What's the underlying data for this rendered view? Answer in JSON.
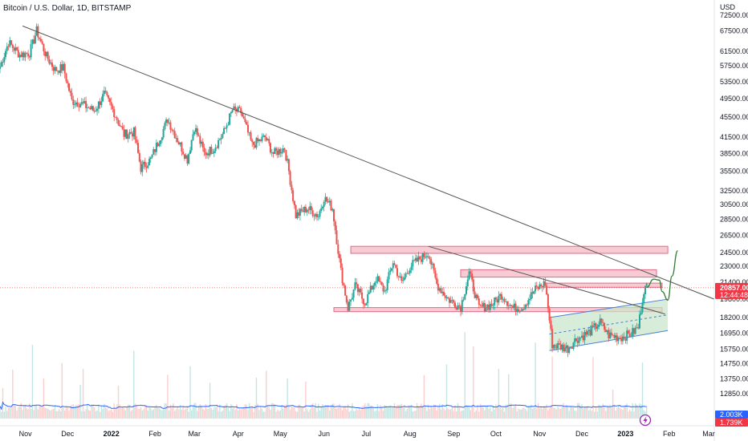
{
  "chart_data": {
    "type": "candlestick",
    "title": "Bitcoin / U.S. Dollar, 1D, BITSTAMP",
    "currency_label": "USD",
    "y_scale": "log",
    "ylim": [
      11900,
      76000
    ],
    "y_ticks": [
      "72500.00",
      "67500.00",
      "61500.00",
      "57500.00",
      "53500.00",
      "49500.00",
      "45500.00",
      "41500.00",
      "38500.00",
      "35500.00",
      "32500.00",
      "30500.00",
      "28500.00",
      "26500.00",
      "24500.00",
      "23000.00",
      "21400.00",
      "19800.00",
      "18200.00",
      "16950.00",
      "15750.00",
      "14750.00",
      "13750.00",
      "12850.00"
    ],
    "x_ticks": [
      "Nov",
      "Dec",
      "2022",
      "Feb",
      "Mar",
      "Apr",
      "May",
      "Jun",
      "Jul",
      "Aug",
      "Sep",
      "Oct",
      "Nov",
      "Dec",
      "2023",
      "Feb",
      "Mar"
    ],
    "x_tick_dates": [
      "2021-11-01",
      "2021-12-01",
      "2022-01-01",
      "2022-02-01",
      "2022-03-01",
      "2022-04-01",
      "2022-05-01",
      "2022-06-01",
      "2022-07-01",
      "2022-08-01",
      "2022-09-01",
      "2022-10-01",
      "2022-11-01",
      "2022-12-01",
      "2023-01-01",
      "2023-02-01",
      "2023-03-01"
    ],
    "x_range": [
      "2021-10-14",
      "2023-03-05"
    ],
    "price_path": [
      [
        "2021-10-14",
        57300
      ],
      [
        "2021-10-20",
        64000
      ],
      [
        "2021-10-28",
        60500
      ],
      [
        "2021-11-04",
        61000
      ],
      [
        "2021-11-09",
        67500
      ],
      [
        "2021-11-16",
        60000
      ],
      [
        "2021-11-22",
        56500
      ],
      [
        "2021-11-28",
        57000
      ],
      [
        "2021-12-04",
        49000
      ],
      [
        "2021-12-10",
        48500
      ],
      [
        "2021-12-20",
        46800
      ],
      [
        "2021-12-27",
        50500
      ],
      [
        "2022-01-03",
        46500
      ],
      [
        "2022-01-10",
        42000
      ],
      [
        "2022-01-17",
        42500
      ],
      [
        "2022-01-22",
        36000
      ],
      [
        "2022-01-29",
        37500
      ],
      [
        "2022-02-07",
        43000
      ],
      [
        "2022-02-10",
        45000
      ],
      [
        "2022-02-19",
        40000
      ],
      [
        "2022-02-24",
        37500
      ],
      [
        "2022-03-01",
        43500
      ],
      [
        "2022-03-08",
        38500
      ],
      [
        "2022-03-15",
        39500
      ],
      [
        "2022-03-22",
        42500
      ],
      [
        "2022-03-28",
        47000
      ],
      [
        "2022-04-03",
        46500
      ],
      [
        "2022-04-11",
        40000
      ],
      [
        "2022-04-20",
        41500
      ],
      [
        "2022-04-26",
        38500
      ],
      [
        "2022-05-04",
        39500
      ],
      [
        "2022-05-07",
        35500
      ],
      [
        "2022-05-12",
        29000
      ],
      [
        "2022-05-20",
        30000
      ],
      [
        "2022-05-28",
        29000
      ],
      [
        "2022-06-01",
        31500
      ],
      [
        "2022-06-07",
        30000
      ],
      [
        "2022-06-13",
        22500
      ],
      [
        "2022-06-18",
        19000
      ],
      [
        "2022-06-23",
        21000
      ],
      [
        "2022-06-30",
        19500
      ],
      [
        "2022-07-08",
        21800
      ],
      [
        "2022-07-14",
        20500
      ],
      [
        "2022-07-20",
        23500
      ],
      [
        "2022-07-26",
        21300
      ],
      [
        "2022-08-01",
        23000
      ],
      [
        "2022-08-14",
        24500
      ],
      [
        "2022-08-20",
        21200
      ],
      [
        "2022-08-28",
        19800
      ],
      [
        "2022-09-06",
        19100
      ],
      [
        "2022-09-12",
        22300
      ],
      [
        "2022-09-19",
        19000
      ],
      [
        "2022-09-28",
        19300
      ],
      [
        "2022-10-05",
        20200
      ],
      [
        "2022-10-13",
        19000
      ],
      [
        "2022-10-20",
        19100
      ],
      [
        "2022-10-29",
        20700
      ],
      [
        "2022-11-05",
        21300
      ],
      [
        "2022-11-09",
        17000
      ],
      [
        "2022-11-10",
        16100
      ],
      [
        "2022-11-21",
        15800
      ],
      [
        "2022-11-27",
        16500
      ],
      [
        "2022-12-06",
        17000
      ],
      [
        "2022-12-14",
        17800
      ],
      [
        "2022-12-20",
        16800
      ],
      [
        "2022-12-28",
        16600
      ],
      [
        "2023-01-05",
        16900
      ],
      [
        "2023-01-10",
        17400
      ],
      [
        "2023-01-14",
        20700
      ],
      [
        "2023-01-16",
        20900
      ]
    ],
    "volume_series": [
      {
        "name": "Volume",
        "color": "#26a69a / #ef5350"
      },
      {
        "name": "Volume MA",
        "color": "#2962ff"
      }
    ],
    "trendlines": [
      {
        "start": [
          "2021-10-30",
          69000
        ],
        "end": [
          "2023-03-05",
          19800
        ],
        "color": "#555555"
      },
      {
        "start": [
          "2022-08-14",
          25200
        ],
        "end": [
          "2023-01-29",
          18500
        ],
        "color": "#555555"
      }
    ],
    "zones": [
      {
        "from": [
          "2022-06-20",
          24400
        ],
        "to": [
          "2023-01-31",
          25200
        ]
      },
      {
        "from": [
          "2022-09-06",
          21900
        ],
        "to": [
          "2023-01-23",
          22650
        ]
      },
      {
        "from": [
          "2022-11-06",
          20900
        ],
        "to": [
          "2023-01-27",
          21300
        ]
      },
      {
        "from": [
          "2022-06-08",
          18700
        ],
        "to": [
          "2023-01-27",
          19050
        ]
      }
    ],
    "channel": {
      "lower_start": [
        "2022-11-08",
        15650
      ],
      "lower_end": [
        "2023-01-31",
        17150
      ],
      "upper_start": [
        "2022-11-08",
        18200
      ],
      "upper_end": [
        "2023-01-31",
        19800
      ]
    },
    "projection_path": [
      [
        "2023-01-16",
        20900
      ],
      [
        "2023-01-21",
        21700
      ],
      [
        "2023-01-25",
        21600
      ],
      [
        "2023-01-27",
        20500
      ],
      [
        "2023-01-31",
        19700
      ],
      [
        "2023-02-03",
        22000
      ],
      [
        "2023-02-07",
        24700
      ]
    ],
    "current_price_line": 20857,
    "grid": false,
    "legend": "none"
  },
  "badges": {
    "price": "20857.00",
    "countdown": "12:44:48",
    "volume_ma": "2.003K",
    "volume": "1.739K"
  },
  "colors": {
    "up": "#26a69a",
    "down": "#ef5350",
    "zone_fill": "#f5b9c6",
    "zone_stroke": "#e06b85",
    "channel_fill": "#c8e6c9",
    "channel_stroke": "#4a7fd6",
    "projection": "#2e7d32",
    "volume_ma": "#2962ff",
    "price_badge": "#f23645",
    "ma_badge": "#2962ff"
  },
  "icons": {
    "lightning": "lightning-icon"
  }
}
